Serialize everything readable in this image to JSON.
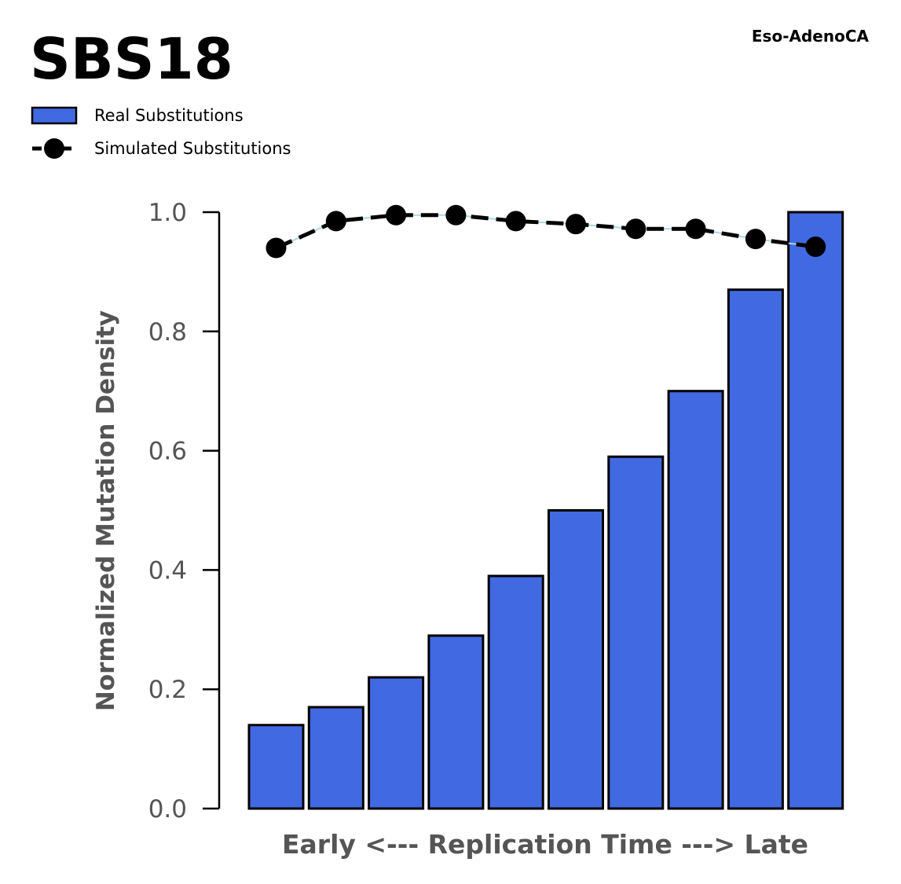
{
  "chart_data": {
    "type": "bar",
    "title": "SBS18",
    "subtitle": "Eso-AdenoCA",
    "xlabel": "Early <--- Replication Time ---> Late",
    "ylabel": "Normalized Mutation Density",
    "ylim": [
      0,
      1
    ],
    "yticks": [
      "0.0",
      "0.2",
      "0.4",
      "0.6",
      "0.8",
      "1.0"
    ],
    "grid": false,
    "legend_position": "top-left",
    "x": [
      1,
      2,
      3,
      4,
      5,
      6,
      7,
      8,
      9,
      10
    ],
    "series": [
      {
        "name": "Real Substitutions",
        "kind": "bar",
        "color": "#4169e1",
        "edge_color": "#000000",
        "values": [
          0.14,
          0.17,
          0.22,
          0.29,
          0.39,
          0.5,
          0.59,
          0.7,
          0.87,
          1.0
        ]
      },
      {
        "name": "Simulated Substitutions",
        "kind": "line",
        "color": "#000000",
        "connector_color": "#a8d8e0",
        "style": "dashed",
        "marker": "circle",
        "values": [
          0.94,
          0.985,
          0.995,
          0.995,
          0.985,
          0.98,
          0.972,
          0.972,
          0.955,
          0.942
        ]
      }
    ]
  }
}
